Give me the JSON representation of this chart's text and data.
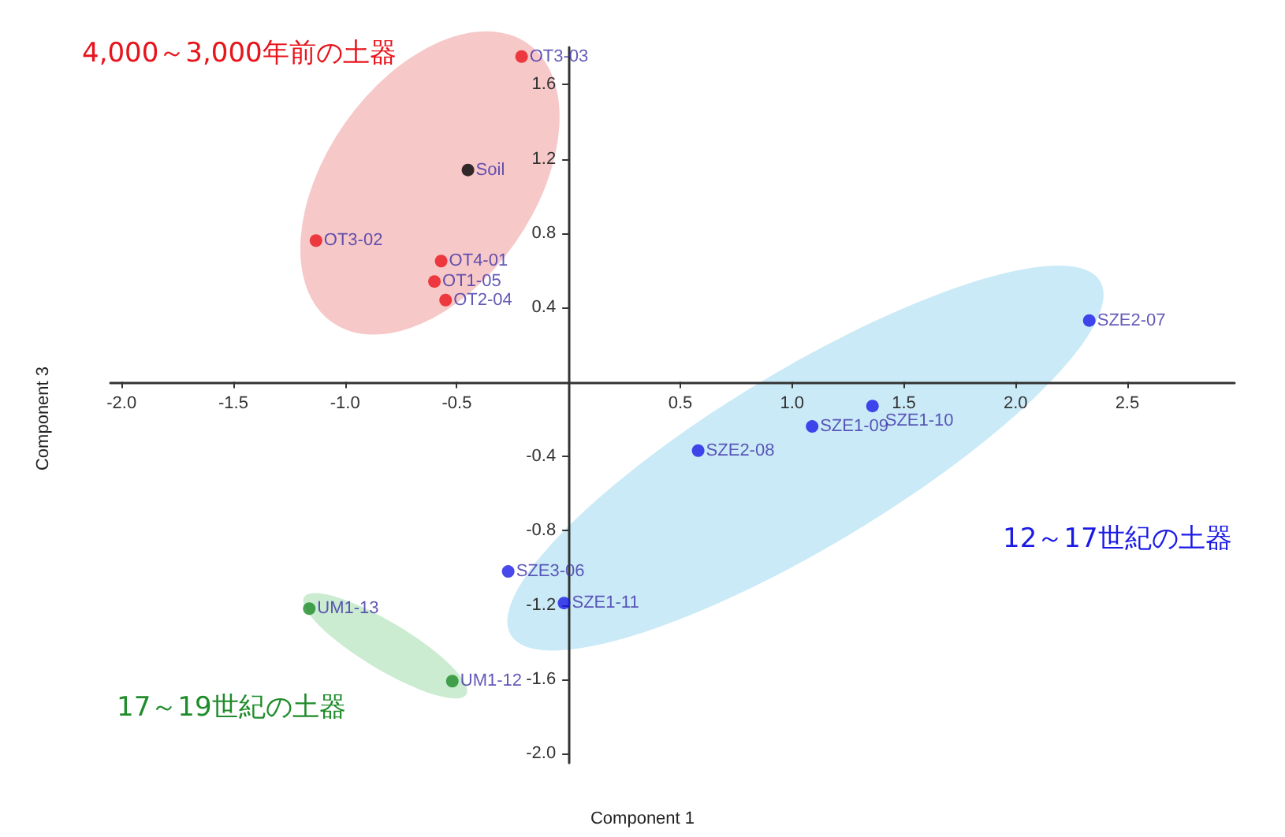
{
  "chart_data": {
    "type": "scatter",
    "xlabel": "Component 1",
    "ylabel": "Component 3",
    "annotations": [
      "4,000～3,000年前の土器",
      "12～17世紀の土器",
      "17～19世紀の土器"
    ],
    "series": [
      {
        "color": "#e8141c",
        "x": [
          -0.21,
          -1.13,
          -0.57,
          -0.6,
          -0.55
        ],
        "values": [
          1.75,
          0.76,
          0.65,
          0.54,
          0.44
        ],
        "value_labels": [
          "OT3-03",
          "OT3-02",
          "OT4-01",
          "OT1-05",
          "OT2-04"
        ]
      },
      {
        "color": "#000000",
        "x": [
          -0.45
        ],
        "values": [
          1.14
        ],
        "value_labels": [
          "Soil"
        ]
      },
      {
        "color": "#1a1ae6",
        "x": [
          2.33,
          1.36,
          1.09,
          0.58,
          -0.27,
          -0.02
        ],
        "values": [
          0.33,
          -0.13,
          -0.24,
          -0.37,
          -1.02,
          -1.19
        ],
        "value_labels": [
          "SZE2-07",
          "SZE1-10",
          "SZE1-09",
          "SZE2-08",
          "SZE3-06",
          "SZE1-11"
        ]
      },
      {
        "color": "#1e8c2a",
        "x": [
          -1.16,
          -0.52
        ],
        "values": [
          -1.22,
          -1.61
        ],
        "value_labels": [
          "UM1-13",
          "UM1-12"
        ]
      }
    ],
    "xlim": [
      -2.05,
      2.98
    ],
    "ylim": [
      -2.05,
      1.8
    ],
    "xticks": [
      {
        "value": -2,
        "label": "-2.0"
      },
      -1.5,
      {
        "value": -1,
        "label": "-1.0"
      },
      -0.5,
      0.5,
      {
        "value": 1,
        "label": "1.0"
      },
      1.5,
      {
        "value": 2,
        "label": "2.0"
      },
      2.5
    ],
    "yticks": [
      {
        "value": -2,
        "label": "-2.0"
      },
      -1.6,
      -1.2,
      -0.8,
      -0.4,
      0.4,
      0.8,
      1.2,
      1.6
    ],
    "marker": "circle",
    "grid": false
  }
}
